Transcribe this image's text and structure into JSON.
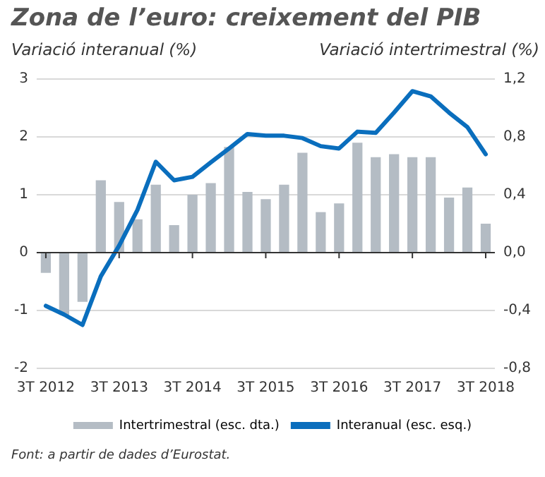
{
  "chart_data": {
    "type": "bar",
    "title": "Zona de l’euro: creixement del PIB",
    "ylabel": "Variació interanual (%)",
    "y2label": "Variació intertrimestral (%)",
    "categories": [
      "3T 2012",
      null,
      null,
      null,
      "3T 2013",
      null,
      null,
      null,
      "3T 2014",
      null,
      null,
      null,
      "3T 2015",
      null,
      null,
      null,
      "3T 2016",
      null,
      null,
      null,
      "3T 2017",
      null,
      null,
      null,
      "3T 2018"
    ],
    "series": [
      {
        "name": "Intertrimestral (esc. dta.)",
        "axis": "y2",
        "color": "#b4bcc4",
        "values": [
          -0.14,
          -0.43,
          -0.34,
          0.5,
          0.35,
          0.23,
          0.47,
          0.19,
          0.4,
          0.48,
          0.73,
          0.42,
          0.37,
          0.47,
          0.69,
          0.28,
          0.34,
          0.76,
          0.66,
          0.68,
          0.66,
          0.66,
          0.38,
          0.45,
          0.2
        ]
      },
      {
        "name": "Interanual (esc. esq.)",
        "type": "line",
        "color": "#0a6ebd",
        "values": [
          -0.92,
          -1.07,
          -1.25,
          -0.41,
          0.12,
          0.74,
          1.57,
          1.25,
          1.31,
          1.56,
          1.8,
          2.05,
          2.02,
          2.02,
          1.98,
          1.84,
          1.8,
          2.09,
          2.07,
          2.42,
          2.79,
          2.7,
          2.42,
          2.17,
          1.7
        ]
      }
    ],
    "ylim": [
      -2,
      3
    ],
    "yticks": [
      -2,
      -1,
      0,
      1,
      2,
      3
    ],
    "y2lim": [
      -0.8,
      1.2
    ],
    "y2ticks": [
      {
        "value": -0.8,
        "label": "-0,8"
      },
      {
        "value": -0.4,
        "label": "-0,4"
      },
      {
        "value": 0,
        "label": "0,0"
      },
      {
        "value": 0.4,
        "label": "0,4"
      },
      {
        "value": 0.8,
        "label": "0,8"
      },
      {
        "value": 1.2,
        "label": "1,2"
      }
    ],
    "grid": "y",
    "legend": "bottom",
    "marker": "none",
    "line_style": "solid",
    "annotations": [
      "Font: a partir de dades d’Eurostat."
    ]
  }
}
